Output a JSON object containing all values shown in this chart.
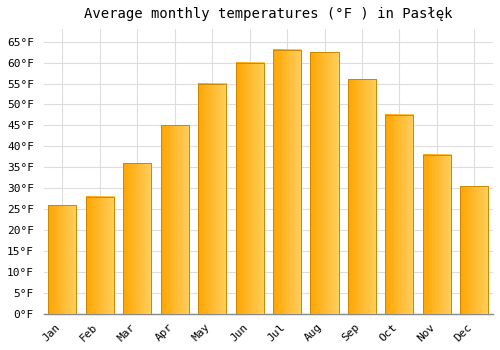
{
  "title": "Average monthly temperatures (°F ) in Pasłęk",
  "months": [
    "Jan",
    "Feb",
    "Mar",
    "Apr",
    "May",
    "Jun",
    "Jul",
    "Aug",
    "Sep",
    "Oct",
    "Nov",
    "Dec"
  ],
  "values": [
    26,
    28,
    36,
    45,
    55,
    60,
    63,
    62.5,
    56,
    47.5,
    38,
    30.5
  ],
  "bar_color_left": "#FFA500",
  "bar_color_right": "#FFD060",
  "bar_edge_color": "#CC8800",
  "ylim": [
    0,
    68
  ],
  "yticks": [
    0,
    5,
    10,
    15,
    20,
    25,
    30,
    35,
    40,
    45,
    50,
    55,
    60,
    65
  ],
  "ytick_labels": [
    "0°F",
    "5°F",
    "10°F",
    "15°F",
    "20°F",
    "25°F",
    "30°F",
    "35°F",
    "40°F",
    "45°F",
    "50°F",
    "55°F",
    "60°F",
    "65°F"
  ],
  "bg_color": "#ffffff",
  "grid_color": "#dddddd",
  "title_fontsize": 10,
  "tick_fontsize": 8,
  "font_family": "monospace"
}
